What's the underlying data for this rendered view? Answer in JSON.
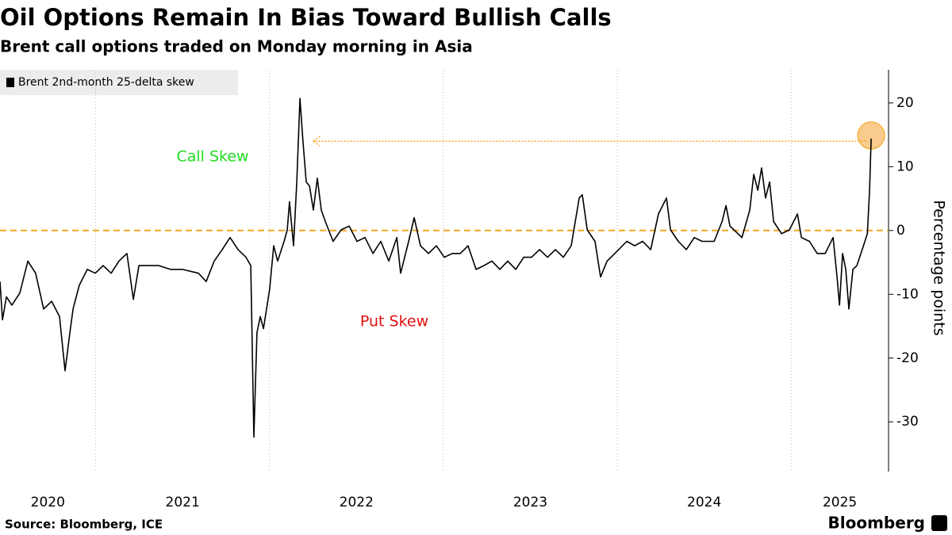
{
  "chart_data": {
    "type": "line",
    "title": "Oil Options Remain In Bias Toward Bullish Calls",
    "subtitle": "Brent call options traded on Monday morning in Asia",
    "y_label": "Percentage points",
    "source": "Source: Bloomberg, ICE",
    "brand": "Bloomberg",
    "annotations": [
      "Call Skew",
      "Put Skew"
    ],
    "reference_line": {
      "value": 0,
      "color": "#f5a623"
    },
    "arrow": {
      "x": [
        2025.43,
        2022.25
      ],
      "y": 14.0,
      "color": "#f5a623"
    },
    "xlim": [
      2020.45,
      2025.56
    ],
    "xticks": [
      2020,
      2021,
      2022,
      2023,
      2024,
      2025
    ],
    "ylim": [
      -37.8,
      25.2
    ],
    "yticks": [
      20,
      10,
      0,
      -10,
      -20,
      -30
    ],
    "grid": true,
    "x": [
      2020.45,
      2020.464,
      2020.487,
      2020.518,
      2020.564,
      2020.61,
      2020.655,
      2020.701,
      2020.747,
      2020.792,
      2020.824,
      2020.852,
      2020.87,
      2020.906,
      2020.952,
      2020.998,
      2021.043,
      2021.089,
      2021.134,
      2021.18,
      2021.217,
      2021.249,
      2021.294,
      2021.363,
      2021.431,
      2021.499,
      2021.591,
      2021.636,
      2021.682,
      2021.728,
      2021.773,
      2021.819,
      2021.865,
      2021.892,
      2021.91,
      2021.928,
      2021.947,
      2021.965,
      2022.001,
      2022.024,
      2022.047,
      2022.084,
      2022.102,
      2022.115,
      2022.138,
      2022.157,
      2022.175,
      2022.193,
      2022.211,
      2022.23,
      2022.252,
      2022.275,
      2022.298,
      2022.321,
      2022.366,
      2022.412,
      2022.458,
      2022.503,
      2022.549,
      2022.595,
      2022.64,
      2022.686,
      2022.732,
      2022.754,
      2022.8,
      2022.832,
      2022.868,
      2022.914,
      2022.96,
      2023.005,
      2023.051,
      2023.097,
      2023.142,
      2023.188,
      2023.233,
      2023.279,
      2023.325,
      2023.37,
      2023.416,
      2023.462,
      2023.507,
      2023.553,
      2023.599,
      2023.644,
      2023.69,
      2023.735,
      2023.781,
      2023.799,
      2023.827,
      2023.872,
      2023.904,
      2023.941,
      2023.986,
      2024.055,
      2024.1,
      2024.146,
      2024.192,
      2024.237,
      2024.283,
      2024.306,
      2024.351,
      2024.397,
      2024.443,
      2024.488,
      2024.557,
      2024.603,
      2024.625,
      2024.648,
      2024.717,
      2024.762,
      2024.785,
      2024.808,
      2024.83,
      2024.853,
      2024.876,
      2024.899,
      2024.945,
      2024.99,
      2025.036,
      2025.059,
      2025.105,
      2025.15,
      2025.196,
      2025.241,
      2025.264,
      2025.278,
      2025.296,
      2025.314,
      2025.332,
      2025.355,
      2025.378,
      2025.401,
      2025.424,
      2025.438,
      2025.451,
      2025.46
    ],
    "series": [
      {
        "name": "Brent 2nd-month 25-delta skew",
        "color": "#000000",
        "values": [
          -8.0,
          -14.0,
          -10.4,
          -11.7,
          -9.8,
          -4.8,
          -6.7,
          -12.3,
          -11.1,
          -13.5,
          -22.0,
          -16.0,
          -12.3,
          -8.6,
          -6.1,
          -6.7,
          -5.5,
          -6.7,
          -4.8,
          -3.6,
          -10.8,
          -5.5,
          -5.5,
          -5.5,
          -6.1,
          -6.1,
          -6.7,
          -8.0,
          -4.8,
          -3.0,
          -1.1,
          -3.0,
          -4.2,
          -5.5,
          -32.4,
          -16.0,
          -13.5,
          -15.4,
          -9.2,
          -2.4,
          -4.8,
          -1.7,
          0.1,
          4.5,
          -2.4,
          7.6,
          20.7,
          13.8,
          7.6,
          7.0,
          3.2,
          8.2,
          3.2,
          1.4,
          -1.7,
          0.1,
          0.7,
          -1.7,
          -1.1,
          -3.6,
          -1.7,
          -4.8,
          -1.1,
          -6.7,
          -1.7,
          2.0,
          -2.4,
          -3.6,
          -2.4,
          -4.2,
          -3.6,
          -3.6,
          -2.4,
          -6.1,
          -5.5,
          -4.8,
          -6.1,
          -4.8,
          -6.1,
          -4.2,
          -4.2,
          -3.0,
          -4.2,
          -3.0,
          -4.2,
          -2.4,
          5.1,
          5.6,
          0.1,
          -1.7,
          -7.3,
          -4.8,
          -3.6,
          -1.7,
          -2.4,
          -1.7,
          -3.0,
          2.6,
          5.1,
          0.1,
          -1.7,
          -3.0,
          -1.1,
          -1.7,
          -1.7,
          1.4,
          3.9,
          0.7,
          -1.1,
          3.2,
          8.8,
          6.3,
          9.8,
          5.1,
          7.6,
          1.4,
          -0.5,
          0.1,
          2.6,
          -1.1,
          -1.7,
          -3.6,
          -3.6,
          -1.1,
          -7.3,
          -11.7,
          -3.6,
          -6.1,
          -12.3,
          -6.1,
          -5.5,
          -3.6,
          -1.7,
          -0.5,
          6.3,
          14.4
        ]
      }
    ]
  }
}
